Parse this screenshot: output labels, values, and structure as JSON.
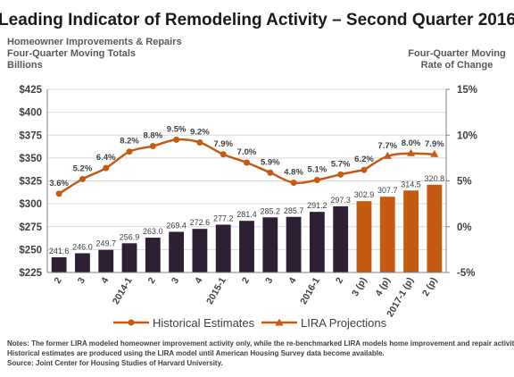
{
  "title": "Leading Indicator of Remodeling Activity – Second Quarter 2016",
  "left_axis_title": [
    "Homeowner Improvements & Repairs",
    "Four-Quarter Moving Totals",
    "Billions"
  ],
  "right_axis_title": [
    "Four-Quarter Moving",
    "Rate of Change"
  ],
  "legend": {
    "historical": "Historical Estimates",
    "projections": "LIRA Projections"
  },
  "notes": [
    "Notes: The former LIRA modeled homeowner improvement activity only, while the re-benchmarked LIRA models home improvement and repair activity.",
    "Historical estimates are produced using the LIRA model until American Housing Survey data become available.",
    "Source: Joint Center for Housing Studies of Harvard University."
  ],
  "colors": {
    "historical_bar": "#2e2034",
    "projection_bar": "#c55a11",
    "line": "#c55a11",
    "grid": "#d9d9d9",
    "axis": "#808080"
  },
  "chart_data": {
    "type": "bar",
    "categories": [
      "2",
      "3",
      "4",
      "2014-1",
      "2",
      "3",
      "4",
      "2015-1",
      "2",
      "3",
      "4",
      "2016-1",
      "2",
      "3 (p)",
      "4 (p)",
      "2017-1 (p)",
      "2 (p)"
    ],
    "series": [
      {
        "name": "Historical Estimates",
        "type": "bar",
        "axis": "left",
        "values": [
          241.6,
          246.0,
          249.7,
          256.9,
          263.0,
          269.4,
          272.6,
          277.2,
          281.4,
          285.2,
          285.7,
          291.2,
          297.3,
          null,
          null,
          null,
          null
        ],
        "labels": [
          "241.6",
          "246.0",
          "249.7",
          "256.9",
          "263.0",
          "269.4",
          "272.6",
          "277.2",
          "281.4",
          "285.2",
          "285.7",
          "291.2",
          "297.3",
          "",
          "",
          "",
          ""
        ]
      },
      {
        "name": "LIRA Projections",
        "type": "bar",
        "axis": "left",
        "values": [
          null,
          null,
          null,
          null,
          null,
          null,
          null,
          null,
          null,
          null,
          null,
          null,
          null,
          302.9,
          307.7,
          314.5,
          320.8
        ],
        "labels": [
          "",
          "",
          "",
          "",
          "",
          "",
          "",
          "",
          "",
          "",
          "",
          "",
          "",
          "302.9",
          "307.7",
          "314.5",
          "320.8"
        ]
      },
      {
        "name": "Historical Estimates",
        "type": "line",
        "marker": "circle",
        "axis": "right",
        "values": [
          3.6,
          5.2,
          6.4,
          8.2,
          8.8,
          9.5,
          9.2,
          7.9,
          7.0,
          5.9,
          4.8,
          5.1,
          5.7,
          6.2,
          null,
          null,
          null
        ],
        "labels": [
          "3.6%",
          "5.2%",
          "6.4%",
          "8.2%",
          "8.8%",
          "9.5%",
          "9.2%",
          "7.9%",
          "7.0%",
          "5.9%",
          "4.8%",
          "5.1%",
          "5.7%",
          "6.2%",
          "",
          "",
          ""
        ]
      },
      {
        "name": "LIRA Projections",
        "type": "line",
        "marker": "triangle",
        "axis": "right",
        "values": [
          null,
          null,
          null,
          null,
          null,
          null,
          null,
          null,
          null,
          null,
          null,
          null,
          null,
          6.2,
          7.7,
          8.0,
          7.9
        ],
        "labels": [
          "",
          "",
          "",
          "",
          "",
          "",
          "",
          "",
          "",
          "",
          "",
          "",
          "",
          "",
          "7.7%",
          "8.0%",
          "7.9%"
        ]
      }
    ],
    "left_axis": {
      "min": 225,
      "max": 425,
      "step": 25,
      "ticks": [
        "$225",
        "$250",
        "$275",
        "$300",
        "$325",
        "$350",
        "$375",
        "$400",
        "$425"
      ]
    },
    "right_axis": {
      "min": -5,
      "max": 15,
      "step": 5,
      "ticks": [
        "-5%",
        "0%",
        "5%",
        "10%",
        "15%"
      ]
    },
    "grid": "horizontal",
    "legend_position": "bottom"
  }
}
